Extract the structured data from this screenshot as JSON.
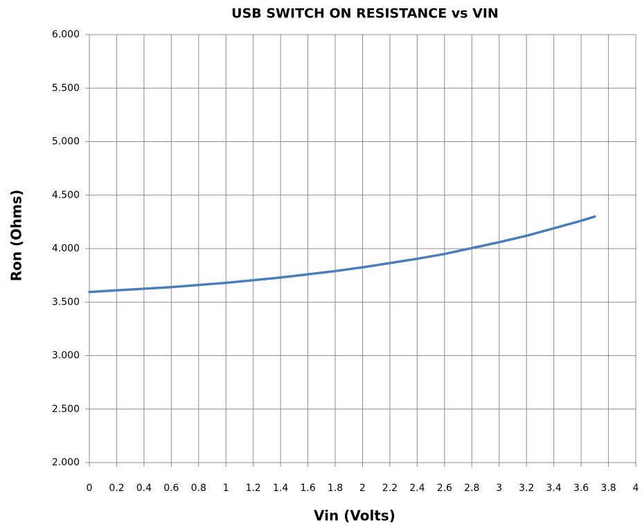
{
  "chart_data": {
    "type": "line",
    "title": "USB SWITCH ON RESISTANCE vs VIN",
    "x_label": "Vin (Volts)",
    "y_label": "Ron (Ohms)",
    "x": [
      0,
      0.2,
      0.4,
      0.6,
      0.8,
      1.0,
      1.2,
      1.4,
      1.6,
      1.8,
      2.0,
      2.2,
      2.4,
      2.6,
      2.8,
      3.0,
      3.2,
      3.4,
      3.6,
      3.7
    ],
    "values": [
      3.595,
      3.61,
      3.625,
      3.64,
      3.66,
      3.68,
      3.705,
      3.73,
      3.76,
      3.79,
      3.825,
      3.865,
      3.905,
      3.95,
      4.005,
      4.06,
      4.12,
      4.19,
      4.26,
      4.3
    ],
    "color": "#4a7ebb",
    "xlim": [
      0,
      4
    ],
    "xticks": [
      0,
      0.2,
      0.4,
      0.6,
      0.8,
      1,
      1.2,
      1.4,
      1.6,
      1.8,
      2,
      2.2,
      2.4,
      2.6,
      2.8,
      3,
      3.2,
      3.4,
      3.6,
      3.8,
      4
    ],
    "ylim": [
      2,
      6
    ],
    "yticks": [
      {
        "value": 2,
        "label": "2.000"
      },
      {
        "value": 2.5,
        "label": "2.500"
      },
      {
        "value": 3,
        "label": "3.000"
      },
      {
        "value": 3.5,
        "label": "3.500"
      },
      {
        "value": 4,
        "label": "4.000"
      },
      {
        "value": 4.5,
        "label": "4.500"
      },
      {
        "value": 5,
        "label": "5.000"
      },
      {
        "value": 5.5,
        "label": "5.500"
      },
      {
        "value": 6,
        "label": "6.000"
      }
    ],
    "grid": true
  }
}
